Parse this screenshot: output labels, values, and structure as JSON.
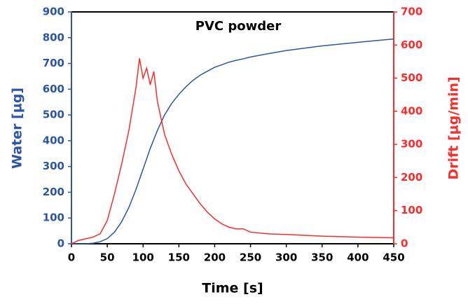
{
  "chart_data": {
    "type": "line",
    "title": "PVC powder",
    "x_label": "Time [s]",
    "y_label": "Water [µg]",
    "y2_label": "Drift [µg/min]",
    "x": [
      0,
      10,
      20,
      30,
      40,
      50,
      60,
      70,
      80,
      90,
      95,
      100,
      105,
      110,
      115,
      120,
      125,
      130,
      140,
      150,
      160,
      170,
      180,
      190,
      200,
      210,
      220,
      230,
      240,
      250,
      275,
      300,
      350,
      400,
      450
    ],
    "series": [
      {
        "name": "Water",
        "color": "#2c55a8",
        "values": [
          0,
          0,
          0,
          2,
          8,
          20,
          45,
          85,
          140,
          210,
          250,
          290,
          330,
          370,
          405,
          440,
          470,
          500,
          545,
          580,
          610,
          635,
          655,
          670,
          685,
          695,
          705,
          712,
          718,
          725,
          738,
          750,
          768,
          782,
          795
        ]
      },
      {
        "name": "Drift",
        "color": "#ff2a2a",
        "axis": "y2",
        "values": [
          0,
          10,
          15,
          20,
          30,
          70,
          150,
          240,
          340,
          470,
          560,
          500,
          530,
          480,
          520,
          430,
          380,
          330,
          270,
          220,
          180,
          150,
          120,
          95,
          75,
          60,
          50,
          45,
          45,
          35,
          30,
          28,
          23,
          20,
          18
        ]
      }
    ],
    "xlim": [
      0,
      450
    ],
    "xticks": [
      0,
      50,
      100,
      150,
      200,
      250,
      300,
      350,
      400,
      450
    ],
    "ylim": [
      0,
      900
    ],
    "yticks": [
      0,
      100,
      200,
      300,
      400,
      500,
      600,
      700,
      800,
      900
    ],
    "y2lim": [
      0,
      700
    ],
    "y2ticks": [
      0,
      100,
      200,
      300,
      400,
      500,
      600,
      700
    ]
  }
}
